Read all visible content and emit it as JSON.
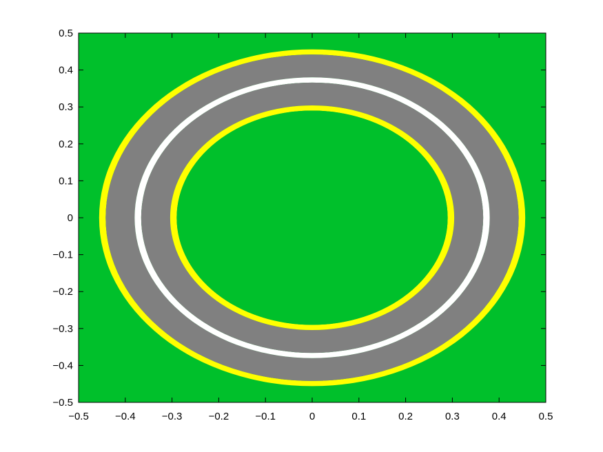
{
  "colors": {
    "field": "#00c02b",
    "track": "#808080",
    "edge_line": "#ffff00",
    "center_line": "#ffffff",
    "axes": "#000000",
    "background": "#ffffff"
  },
  "chart_data": {
    "type": "area",
    "title": "",
    "xlabel": "",
    "ylabel": "",
    "xlim": [
      -0.5,
      0.5
    ],
    "ylim": [
      -0.5,
      0.5
    ],
    "grid": false,
    "xticks": [
      -0.5,
      -0.4,
      -0.3,
      -0.2,
      -0.1,
      0,
      0.1,
      0.2,
      0.3,
      0.4,
      0.5
    ],
    "yticks": [
      -0.5,
      -0.4,
      -0.3,
      -0.2,
      -0.1,
      0,
      0.1,
      0.2,
      0.3,
      0.4,
      0.5
    ],
    "xtick_labels": [
      "−0.5",
      "−0.4",
      "−0.3",
      "−0.2",
      "−0.1",
      "0",
      "0.1",
      "0.2",
      "0.3",
      "0.4",
      "0.5"
    ],
    "ytick_labels": [
      "−0.5",
      "−0.4",
      "−0.3",
      "−0.2",
      "−0.1",
      "0",
      "0.1",
      "0.2",
      "0.3",
      "0.4",
      "0.5"
    ],
    "background_region": {
      "x": [
        -0.5,
        0.5
      ],
      "y": [
        -0.5,
        0.5
      ],
      "color": "field"
    },
    "shapes": [
      {
        "name": "outer-edge-line",
        "kind": "ring",
        "center": [
          0,
          0
        ],
        "outer_radius": 0.456,
        "inner_radius": 0.442,
        "color": "edge_line"
      },
      {
        "name": "track-outer-band",
        "kind": "ring",
        "center": [
          0,
          0
        ],
        "outer_radius": 0.442,
        "inner_radius": 0.38,
        "color": "track"
      },
      {
        "name": "center-line",
        "kind": "ring",
        "center": [
          0,
          0
        ],
        "outer_radius": 0.38,
        "inner_radius": 0.366,
        "color": "center_line"
      },
      {
        "name": "track-inner-band",
        "kind": "ring",
        "center": [
          0,
          0
        ],
        "outer_radius": 0.366,
        "inner_radius": 0.304,
        "color": "track"
      },
      {
        "name": "inner-edge-line",
        "kind": "ring",
        "center": [
          0,
          0
        ],
        "outer_radius": 0.304,
        "inner_radius": 0.29,
        "color": "edge_line"
      },
      {
        "name": "infield",
        "kind": "disk",
        "center": [
          0,
          0
        ],
        "radius": 0.29,
        "color": "field"
      }
    ]
  }
}
